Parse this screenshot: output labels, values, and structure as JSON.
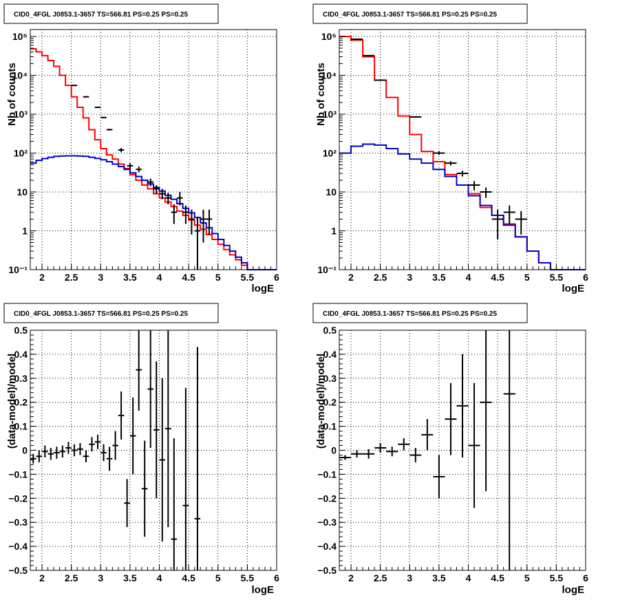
{
  "colors": {
    "total_model": "#ff0000",
    "background_model": "#0000cc",
    "data": "#000000"
  },
  "chart_data": [
    {
      "id": "p1",
      "type": "line",
      "title": "CID0_4FGL J0853.1-3657 TS=566.81 PS=0.25 PS=0.25",
      "xlabel": "logE",
      "ylabel": "Nb of counts",
      "xlim": [
        1.8,
        6.0
      ],
      "ylim": [
        0.1,
        150000
      ],
      "yscale": "log",
      "grid": true,
      "xticks": [
        "2",
        "2.5",
        "3",
        "3.5",
        "4",
        "4.5",
        "5",
        "5.5",
        "6"
      ],
      "xtick_values": [
        2,
        2.5,
        3,
        3.5,
        4,
        4.5,
        5,
        5.5,
        6
      ],
      "yticks": [
        "10⁻¹",
        "1",
        "10",
        "10²",
        "10³",
        "10⁴",
        "10⁵"
      ],
      "ytick_values": [
        0.1,
        1,
        10,
        100,
        1000,
        10000,
        100000
      ],
      "bin_edges": [
        1.8,
        1.9,
        2.0,
        2.1,
        2.2,
        2.3,
        2.4,
        2.5,
        2.6,
        2.7,
        2.8,
        2.9,
        3.0,
        3.1,
        3.2,
        3.3,
        3.4,
        3.5,
        3.6,
        3.7,
        3.8,
        3.9,
        4.0,
        4.1,
        4.2,
        4.3,
        4.4,
        4.5,
        4.6,
        4.7,
        4.8,
        4.9,
        5.0,
        5.1,
        5.2,
        5.3,
        5.4,
        5.5,
        5.6,
        5.7,
        5.8,
        5.9,
        6.0
      ],
      "series": [
        {
          "color": "#ff0000",
          "values": [
            48000,
            40000,
            32000,
            24000,
            17000,
            10000,
            5500,
            2800,
            1500,
            800,
            400,
            220,
            130,
            90,
            70,
            52,
            40,
            28,
            20,
            15,
            12,
            9,
            7,
            5.5,
            4.2,
            3.2,
            2.5,
            1.9,
            1.4,
            1.1,
            0.8,
            0.6,
            0.45,
            0.33,
            0.24,
            0.18,
            0.13,
            0.1,
            0.1,
            0.1,
            0.1,
            0.1
          ]
        },
        {
          "color": "#0000cc",
          "values": [
            55,
            65,
            72,
            78,
            82,
            84,
            85,
            85,
            84,
            82,
            78,
            73,
            67,
            60,
            52,
            45,
            38,
            31,
            25,
            20,
            16,
            13,
            10.5,
            8.2,
            6.5,
            5,
            3.8,
            2.9,
            2.2,
            1.6,
            1.2,
            0.85,
            0.6,
            0.42,
            0.3,
            0.21,
            0.15,
            0.1,
            0.1,
            0.1,
            0.1,
            0.1
          ]
        }
      ],
      "data_points": [
        {
          "x": 2.55,
          "y": 5500,
          "xerr": 0.05,
          "ylo": 5400,
          "yhi": 5600
        },
        {
          "x": 2.75,
          "y": 2800,
          "xerr": 0.05,
          "ylo": 2700,
          "yhi": 2900
        },
        {
          "x": 2.95,
          "y": 1500,
          "xerr": 0.05,
          "ylo": 1450,
          "yhi": 1550
        },
        {
          "x": 3.05,
          "y": 820,
          "xerr": 0.05,
          "ylo": 790,
          "yhi": 850
        },
        {
          "x": 3.15,
          "y": 400,
          "xerr": 0.05,
          "ylo": 380,
          "yhi": 420
        },
        {
          "x": 3.35,
          "y": 120,
          "xerr": 0.05,
          "ylo": 105,
          "yhi": 135
        },
        {
          "x": 3.5,
          "y": 47,
          "xerr": 0.05,
          "ylo": 40,
          "yhi": 55
        },
        {
          "x": 3.65,
          "y": 38,
          "xerr": 0.05,
          "ylo": 32,
          "yhi": 45
        },
        {
          "x": 3.85,
          "y": 18,
          "xerr": 0.05,
          "ylo": 14,
          "yhi": 22
        },
        {
          "x": 3.95,
          "y": 12,
          "xerr": 0.05,
          "ylo": 9,
          "yhi": 15
        },
        {
          "x": 4.05,
          "y": 9,
          "xerr": 0.05,
          "ylo": 6.5,
          "yhi": 12
        },
        {
          "x": 4.15,
          "y": 7,
          "xerr": 0.05,
          "ylo": 4.8,
          "yhi": 9.5
        },
        {
          "x": 4.25,
          "y": 3,
          "xerr": 0.05,
          "ylo": 1.5,
          "yhi": 4.8
        },
        {
          "x": 4.35,
          "y": 7,
          "xerr": 0.05,
          "ylo": 4.5,
          "yhi": 10
        },
        {
          "x": 4.45,
          "y": 3,
          "xerr": 0.05,
          "ylo": 1.5,
          "yhi": 4.5
        },
        {
          "x": 4.55,
          "y": 2,
          "xerr": 0.05,
          "ylo": 0.8,
          "yhi": 3.5
        },
        {
          "x": 4.65,
          "y": 1,
          "xerr": 0.05,
          "ylo": 0.1,
          "yhi": 2.3
        },
        {
          "x": 4.75,
          "y": 2,
          "xerr": 0.05,
          "ylo": 0.5,
          "yhi": 3.5
        },
        {
          "x": 4.85,
          "y": 2,
          "xerr": 0.05,
          "ylo": 0.8,
          "yhi": 3.5
        }
      ]
    },
    {
      "id": "p2",
      "type": "line",
      "title": "CID0_4FGL J0853.1-3657 TS=566.81 PS=0.25 PS=0.25",
      "xlabel": "logE",
      "ylabel": "Nb of counts",
      "xlim": [
        1.8,
        6.0
      ],
      "ylim": [
        0.1,
        150000
      ],
      "yscale": "log",
      "grid": true,
      "xticks": [
        "2",
        "2.5",
        "3",
        "3.5",
        "4",
        "4.5",
        "5",
        "5.5",
        "6"
      ],
      "xtick_values": [
        2,
        2.5,
        3,
        3.5,
        4,
        4.5,
        5,
        5.5,
        6
      ],
      "yticks": [
        "10⁻¹",
        "1",
        "10",
        "10²",
        "10³",
        "10⁴",
        "10⁵"
      ],
      "ytick_values": [
        0.1,
        1,
        10,
        100,
        1000,
        10000,
        100000
      ],
      "bin_edges": [
        1.8,
        2.0,
        2.2,
        2.4,
        2.6,
        2.8,
        3.0,
        3.2,
        3.4,
        3.6,
        3.8,
        4.0,
        4.2,
        4.4,
        4.6,
        4.8,
        5.0,
        5.2,
        5.4,
        5.6,
        5.8,
        6.0
      ],
      "series": [
        {
          "color": "#ff0000",
          "values": [
            100000,
            80000,
            30000,
            7500,
            2700,
            900,
            300,
            110,
            60,
            28,
            15,
            9,
            4,
            2.5,
            1.5,
            0.7,
            0.3,
            0.15,
            0.1,
            0.1,
            0.1
          ]
        },
        {
          "color": "#0000cc",
          "values": [
            100,
            150,
            170,
            160,
            130,
            95,
            70,
            55,
            38,
            25,
            15,
            8,
            4.5,
            2.5,
            1.4,
            0.7,
            0.3,
            0.15,
            0.1,
            0.1,
            0.1
          ]
        }
      ],
      "data_points": [
        {
          "x": 2.1,
          "y": 85000,
          "xerr": 0.1,
          "ylo": 84000,
          "yhi": 86000
        },
        {
          "x": 2.3,
          "y": 32000,
          "xerr": 0.1,
          "ylo": 31500,
          "yhi": 32500
        },
        {
          "x": 2.5,
          "y": 7500,
          "xerr": 0.1,
          "ylo": 7300,
          "yhi": 7700
        },
        {
          "x": 3.1,
          "y": 850,
          "xerr": 0.1,
          "ylo": 810,
          "yhi": 890
        },
        {
          "x": 3.5,
          "y": 100,
          "xerr": 0.1,
          "ylo": 90,
          "yhi": 110
        },
        {
          "x": 3.7,
          "y": 55,
          "xerr": 0.1,
          "ylo": 48,
          "yhi": 62
        },
        {
          "x": 3.9,
          "y": 30,
          "xerr": 0.1,
          "ylo": 25,
          "yhi": 35
        },
        {
          "x": 4.1,
          "y": 15,
          "xerr": 0.1,
          "ylo": 11,
          "yhi": 19
        },
        {
          "x": 4.3,
          "y": 10,
          "xerr": 0.1,
          "ylo": 7,
          "yhi": 13
        },
        {
          "x": 4.5,
          "y": 2,
          "xerr": 0.1,
          "ylo": 0.6,
          "yhi": 3.5
        },
        {
          "x": 4.7,
          "y": 3,
          "xerr": 0.1,
          "ylo": 1.5,
          "yhi": 4.5
        },
        {
          "x": 4.9,
          "y": 2,
          "xerr": 0.1,
          "ylo": 0.8,
          "yhi": 3.2
        }
      ]
    },
    {
      "id": "p3",
      "type": "scatter",
      "title": "CID0_4FGL J0853.1-3657 TS=566.81 PS=0.25 PS=0.25",
      "xlabel": "logE",
      "ylabel": "(data-model)/model",
      "xlim": [
        1.8,
        6.0
      ],
      "ylim": [
        -0.5,
        0.5
      ],
      "yscale": "linear",
      "grid": true,
      "xticks": [
        "2",
        "2.5",
        "3",
        "3.5",
        "4",
        "4.5",
        "5",
        "5.5",
        "6"
      ],
      "xtick_values": [
        2,
        2.5,
        3,
        3.5,
        4,
        4.5,
        5,
        5.5,
        6
      ],
      "yticks": [
        "−0.5",
        "−0.4",
        "−0.3",
        "−0.2",
        "−0.1",
        "0",
        "0.1",
        "0.2",
        "0.3",
        "0.4",
        "0.5"
      ],
      "ytick_values": [
        -0.5,
        -0.4,
        -0.3,
        -0.2,
        -0.1,
        0,
        0.1,
        0.2,
        0.3,
        0.4,
        0.5
      ],
      "data_points": [
        {
          "x": 1.85,
          "y": -0.035,
          "xerr": 0.05,
          "ylo": -0.055,
          "yhi": -0.015
        },
        {
          "x": 1.95,
          "y": -0.025,
          "xerr": 0.05,
          "ylo": -0.05,
          "yhi": 0.0
        },
        {
          "x": 2.05,
          "y": -0.005,
          "xerr": 0.05,
          "ylo": -0.03,
          "yhi": 0.02
        },
        {
          "x": 2.15,
          "y": -0.015,
          "xerr": 0.05,
          "ylo": -0.04,
          "yhi": 0.01
        },
        {
          "x": 2.25,
          "y": -0.01,
          "xerr": 0.05,
          "ylo": -0.035,
          "yhi": 0.015
        },
        {
          "x": 2.35,
          "y": -0.005,
          "xerr": 0.05,
          "ylo": -0.03,
          "yhi": 0.02
        },
        {
          "x": 2.45,
          "y": 0.01,
          "xerr": 0.05,
          "ylo": -0.015,
          "yhi": 0.035
        },
        {
          "x": 2.55,
          "y": 0.0,
          "xerr": 0.05,
          "ylo": -0.025,
          "yhi": 0.025
        },
        {
          "x": 2.65,
          "y": 0.005,
          "xerr": 0.05,
          "ylo": -0.02,
          "yhi": 0.03
        },
        {
          "x": 2.75,
          "y": -0.025,
          "xerr": 0.05,
          "ylo": -0.05,
          "yhi": 0.0
        },
        {
          "x": 2.85,
          "y": 0.025,
          "xerr": 0.05,
          "ylo": -0.005,
          "yhi": 0.055
        },
        {
          "x": 2.95,
          "y": 0.035,
          "xerr": 0.05,
          "ylo": 0.005,
          "yhi": 0.065
        },
        {
          "x": 3.05,
          "y": -0.01,
          "xerr": 0.05,
          "ylo": -0.045,
          "yhi": 0.025
        },
        {
          "x": 3.15,
          "y": -0.035,
          "xerr": 0.05,
          "ylo": -0.085,
          "yhi": 0.015
        },
        {
          "x": 3.25,
          "y": 0.02,
          "xerr": 0.05,
          "ylo": -0.04,
          "yhi": 0.08
        },
        {
          "x": 3.35,
          "y": 0.145,
          "xerr": 0.05,
          "ylo": 0.045,
          "yhi": 0.245
        },
        {
          "x": 3.45,
          "y": -0.22,
          "xerr": 0.05,
          "ylo": -0.32,
          "yhi": -0.12
        },
        {
          "x": 3.55,
          "y": 0.06,
          "xerr": 0.05,
          "ylo": -0.1,
          "yhi": 0.22
        },
        {
          "x": 3.65,
          "y": 0.335,
          "xerr": 0.05,
          "ylo": 0.165,
          "yhi": 0.5
        },
        {
          "x": 3.75,
          "y": -0.16,
          "xerr": 0.05,
          "ylo": -0.36,
          "yhi": 0.04
        },
        {
          "x": 3.85,
          "y": 0.255,
          "xerr": 0.05,
          "ylo": 0.01,
          "yhi": 0.5
        },
        {
          "x": 3.95,
          "y": 0.085,
          "xerr": 0.05,
          "ylo": -0.2,
          "yhi": 0.37
        },
        {
          "x": 4.05,
          "y": -0.04,
          "xerr": 0.05,
          "ylo": -0.38,
          "yhi": 0.3
        },
        {
          "x": 4.15,
          "y": 0.09,
          "xerr": 0.05,
          "ylo": -0.32,
          "yhi": 0.5
        },
        {
          "x": 4.25,
          "y": -0.37,
          "xerr": 0.05,
          "ylo": -0.5,
          "yhi": 0.05
        },
        {
          "x": 4.45,
          "y": -0.23,
          "xerr": 0.05,
          "ylo": -0.5,
          "yhi": 0.26
        },
        {
          "x": 4.65,
          "y": -0.285,
          "xerr": 0.05,
          "ylo": -0.5,
          "yhi": 0.43
        }
      ]
    },
    {
      "id": "p4",
      "type": "scatter",
      "title": "CID0_4FGL J0853.1-3657 TS=566.81 PS=0.25 PS=0.25",
      "xlabel": "logE",
      "ylabel": "(data-model)/model",
      "xlim": [
        1.8,
        6.0
      ],
      "ylim": [
        -0.5,
        0.5
      ],
      "yscale": "linear",
      "grid": true,
      "xticks": [
        "2",
        "2.5",
        "3",
        "3.5",
        "4",
        "4.5",
        "5",
        "5.5",
        "6"
      ],
      "xtick_values": [
        2,
        2.5,
        3,
        3.5,
        4,
        4.5,
        5,
        5.5,
        6
      ],
      "yticks": [
        "−0.5",
        "−0.4",
        "−0.3",
        "−0.2",
        "−0.1",
        "0",
        "0.1",
        "0.2",
        "0.3",
        "0.4",
        "0.5"
      ],
      "ytick_values": [
        -0.5,
        -0.4,
        -0.3,
        -0.2,
        -0.1,
        0,
        0.1,
        0.2,
        0.3,
        0.4,
        0.5
      ],
      "data_points": [
        {
          "x": 1.9,
          "y": -0.03,
          "xerr": 0.1,
          "ylo": -0.04,
          "yhi": -0.02
        },
        {
          "x": 2.1,
          "y": -0.015,
          "xerr": 0.1,
          "ylo": -0.03,
          "yhi": 0.0
        },
        {
          "x": 2.3,
          "y": -0.015,
          "xerr": 0.1,
          "ylo": -0.035,
          "yhi": 0.005
        },
        {
          "x": 2.5,
          "y": 0.01,
          "xerr": 0.1,
          "ylo": -0.01,
          "yhi": 0.03
        },
        {
          "x": 2.7,
          "y": -0.005,
          "xerr": 0.1,
          "ylo": -0.025,
          "yhi": 0.015
        },
        {
          "x": 2.9,
          "y": 0.025,
          "xerr": 0.1,
          "ylo": 0.0,
          "yhi": 0.05
        },
        {
          "x": 3.1,
          "y": -0.02,
          "xerr": 0.1,
          "ylo": -0.05,
          "yhi": 0.01
        },
        {
          "x": 3.3,
          "y": 0.065,
          "xerr": 0.1,
          "ylo": 0.0,
          "yhi": 0.13
        },
        {
          "x": 3.5,
          "y": -0.11,
          "xerr": 0.1,
          "ylo": -0.2,
          "yhi": -0.02
        },
        {
          "x": 3.7,
          "y": 0.13,
          "xerr": 0.1,
          "ylo": -0.02,
          "yhi": 0.28
        },
        {
          "x": 3.9,
          "y": 0.185,
          "xerr": 0.1,
          "ylo": -0.03,
          "yhi": 0.4
        },
        {
          "x": 4.1,
          "y": 0.02,
          "xerr": 0.1,
          "ylo": -0.24,
          "yhi": 0.28
        },
        {
          "x": 4.3,
          "y": 0.2,
          "xerr": 0.1,
          "ylo": -0.17,
          "yhi": 0.5
        },
        {
          "x": 4.7,
          "y": 0.235,
          "xerr": 0.1,
          "ylo": -0.5,
          "yhi": 0.5
        }
      ]
    }
  ]
}
